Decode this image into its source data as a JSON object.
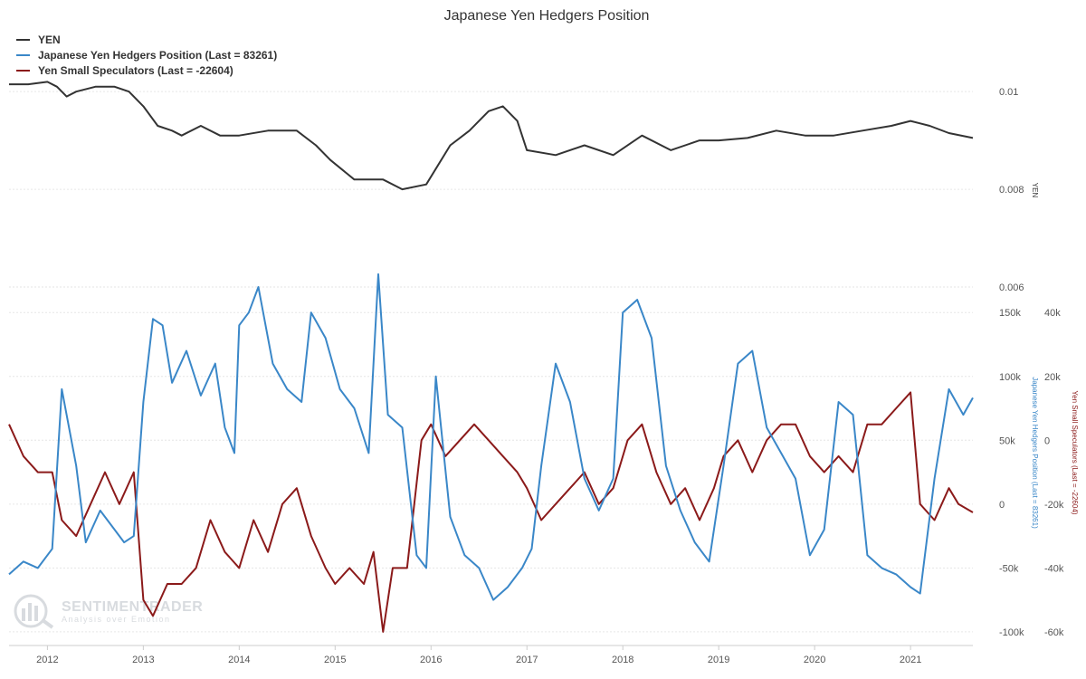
{
  "colors": {
    "yen": "#333333",
    "hedgers": "#3a87c8",
    "specs": "#8b1a1a",
    "grid": "#e6e6e6"
  },
  "watermark": {
    "name": "SENTIMENTRADER",
    "tagline": "Analysis over Emotion"
  },
  "chart_data": {
    "type": "line",
    "title": "Japanese Yen Hedgers Position",
    "legend_position": "top-left",
    "x_axis": {
      "range": [
        2011.6,
        2021.65
      ],
      "ticks": [
        "2012",
        "2013",
        "2014",
        "2015",
        "2016",
        "2017",
        "2018",
        "2019",
        "2020",
        "2021"
      ]
    },
    "yen_axis": {
      "title": "YEN",
      "range": [
        0.006,
        0.0103
      ],
      "ticks": [
        "0.01",
        "0.008",
        "0.006"
      ]
    },
    "hedgers_axis": {
      "title": "Japanese Yen Hedgers Position (Last = 83261)",
      "range": [
        -110000,
        170000
      ],
      "ticks": [
        "150k",
        "100k",
        "50k",
        "0",
        "-50k",
        "-100k"
      ]
    },
    "specs_axis": {
      "title": "Yen Small Speculators (Last = -22604)",
      "range": [
        -64000,
        48000
      ],
      "ticks": [
        "40k",
        "20k",
        "0",
        "-20k",
        "-40k",
        "-60k"
      ]
    },
    "series": [
      {
        "name": "YEN",
        "axis": "yen",
        "x": [
          2011.6,
          2011.8,
          2012.0,
          2012.1,
          2012.2,
          2012.3,
          2012.5,
          2012.7,
          2012.85,
          2013.0,
          2013.15,
          2013.3,
          2013.4,
          2013.6,
          2013.8,
          2014.0,
          2014.3,
          2014.6,
          2014.8,
          2014.95,
          2015.2,
          2015.5,
          2015.7,
          2015.95,
          2016.2,
          2016.4,
          2016.6,
          2016.75,
          2016.9,
          2017.0,
          2017.3,
          2017.6,
          2017.9,
          2018.2,
          2018.5,
          2018.8,
          2019.0,
          2019.3,
          2019.6,
          2019.9,
          2020.2,
          2020.5,
          2020.8,
          2021.0,
          2021.2,
          2021.4,
          2021.65
        ],
        "y": [
          0.01015,
          0.01015,
          0.0102,
          0.0101,
          0.0099,
          0.01,
          0.0101,
          0.0101,
          0.01,
          0.0097,
          0.0093,
          0.0092,
          0.0091,
          0.0093,
          0.0091,
          0.0091,
          0.0092,
          0.0092,
          0.0089,
          0.0086,
          0.0082,
          0.0082,
          0.008,
          0.0081,
          0.0089,
          0.0092,
          0.0096,
          0.0097,
          0.0094,
          0.0088,
          0.0087,
          0.0089,
          0.0087,
          0.0091,
          0.0088,
          0.009,
          0.009,
          0.00905,
          0.0092,
          0.0091,
          0.0091,
          0.0092,
          0.0093,
          0.0094,
          0.0093,
          0.00915,
          0.00905
        ]
      },
      {
        "name": "Japanese Yen Hedgers Position (Last = 83261)",
        "axis": "hedgers",
        "x": [
          2011.6,
          2011.75,
          2011.9,
          2012.05,
          2012.15,
          2012.3,
          2012.4,
          2012.55,
          2012.7,
          2012.8,
          2012.9,
          2013.0,
          2013.1,
          2013.2,
          2013.3,
          2013.45,
          2013.6,
          2013.75,
          2013.85,
          2013.95,
          2014.0,
          2014.1,
          2014.2,
          2014.35,
          2014.5,
          2014.65,
          2014.75,
          2014.9,
          2015.05,
          2015.2,
          2015.35,
          2015.45,
          2015.55,
          2015.7,
          2015.85,
          2015.95,
          2016.05,
          2016.2,
          2016.35,
          2016.5,
          2016.65,
          2016.8,
          2016.95,
          2017.05,
          2017.15,
          2017.3,
          2017.45,
          2017.6,
          2017.75,
          2017.9,
          2018.0,
          2018.15,
          2018.3,
          2018.45,
          2018.6,
          2018.75,
          2018.9,
          2019.05,
          2019.2,
          2019.35,
          2019.5,
          2019.65,
          2019.8,
          2019.95,
          2020.1,
          2020.25,
          2020.4,
          2020.55,
          2020.7,
          2020.85,
          2021.0,
          2021.1,
          2021.25,
          2021.4,
          2021.55,
          2021.65
        ],
        "y": [
          -55000,
          -45000,
          -50000,
          -35000,
          90000,
          30000,
          -30000,
          -5000,
          -20000,
          -30000,
          -25000,
          80000,
          145000,
          140000,
          95000,
          120000,
          85000,
          110000,
          60000,
          40000,
          140000,
          150000,
          170000,
          110000,
          90000,
          80000,
          150000,
          130000,
          90000,
          75000,
          40000,
          180000,
          70000,
          60000,
          -40000,
          -50000,
          100000,
          -10000,
          -40000,
          -50000,
          -75000,
          -65000,
          -50000,
          -35000,
          30000,
          110000,
          80000,
          20000,
          -5000,
          20000,
          150000,
          160000,
          130000,
          30000,
          -5000,
          -30000,
          -45000,
          30000,
          110000,
          120000,
          60000,
          40000,
          20000,
          -40000,
          -20000,
          80000,
          70000,
          -40000,
          -50000,
          -55000,
          -65000,
          -70000,
          20000,
          90000,
          70000,
          83261
        ]
      },
      {
        "name": "Yen Small Speculators (Last = -22604)",
        "axis": "specs",
        "x": [
          2011.6,
          2011.75,
          2011.9,
          2012.05,
          2012.15,
          2012.3,
          2012.45,
          2012.6,
          2012.75,
          2012.9,
          2013.0,
          2013.1,
          2013.25,
          2013.4,
          2013.55,
          2013.7,
          2013.85,
          2014.0,
          2014.15,
          2014.3,
          2014.45,
          2014.6,
          2014.75,
          2014.9,
          2015.0,
          2015.15,
          2015.3,
          2015.4,
          2015.5,
          2015.6,
          2015.75,
          2015.9,
          2016.0,
          2016.15,
          2016.3,
          2016.45,
          2016.6,
          2016.75,
          2016.9,
          2017.0,
          2017.15,
          2017.3,
          2017.45,
          2017.6,
          2017.75,
          2017.9,
          2018.05,
          2018.2,
          2018.35,
          2018.5,
          2018.65,
          2018.8,
          2018.95,
          2019.05,
          2019.2,
          2019.35,
          2019.5,
          2019.65,
          2019.8,
          2019.95,
          2020.1,
          2020.25,
          2020.4,
          2020.55,
          2020.7,
          2020.85,
          2021.0,
          2021.1,
          2021.25,
          2021.4,
          2021.5,
          2021.65
        ],
        "y": [
          5000,
          -5000,
          -10000,
          -10000,
          -25000,
          -30000,
          -20000,
          -10000,
          -20000,
          -10000,
          -50000,
          -55000,
          -45000,
          -45000,
          -40000,
          -25000,
          -35000,
          -40000,
          -25000,
          -35000,
          -20000,
          -15000,
          -30000,
          -40000,
          -45000,
          -40000,
          -45000,
          -35000,
          -60000,
          -40000,
          -40000,
          0,
          5000,
          -5000,
          0,
          5000,
          0,
          -5000,
          -10000,
          -15000,
          -25000,
          -20000,
          -15000,
          -10000,
          -20000,
          -15000,
          0,
          5000,
          -10000,
          -20000,
          -15000,
          -25000,
          -15000,
          -5000,
          0,
          -10000,
          0,
          5000,
          5000,
          -5000,
          -10000,
          -5000,
          -10000,
          5000,
          5000,
          10000,
          15000,
          -20000,
          -25000,
          -15000,
          -20000,
          -22604
        ]
      }
    ]
  }
}
